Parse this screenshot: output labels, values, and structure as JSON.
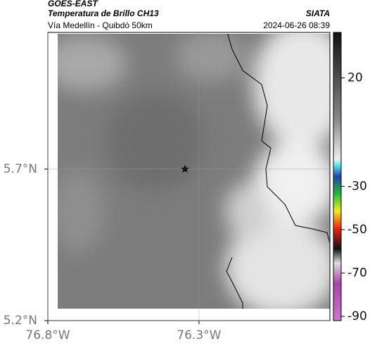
{
  "map": {
    "source": "GOES-EAST",
    "title": "Temperatura de Brillo CH13",
    "brand": "SIATA",
    "subtitle": "Vía Medellín - Quibdó 50km",
    "timestamp": "2024-06-26 08:39",
    "xlim": [
      -76.8,
      -75.867
    ],
    "ylim": [
      5.2,
      6.151
    ],
    "xticks": [
      {
        "value": -76.8,
        "label": "76.8°W"
      },
      {
        "value": -76.3,
        "label": "76.3°W"
      }
    ],
    "yticks": [
      {
        "value": 5.2,
        "label": "5.2°N"
      },
      {
        "value": 5.7,
        "label": "5.7°N"
      }
    ],
    "colorbar": {
      "lim": [
        -92,
        41
      ],
      "ticks": [
        20,
        -30,
        -50,
        -70,
        -90
      ]
    }
  }
}
